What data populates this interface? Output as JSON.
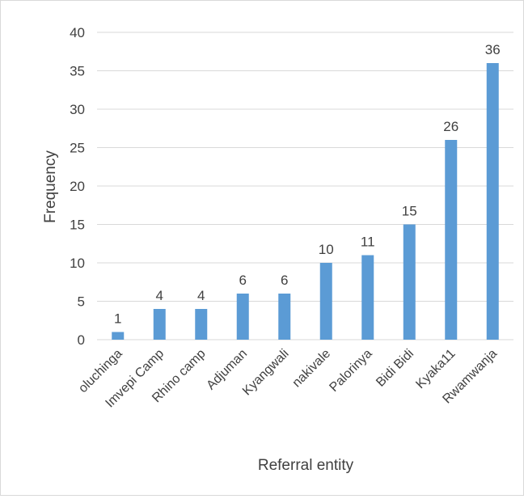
{
  "chart_data": {
    "type": "bar",
    "title": "",
    "xlabel": "Referral entity",
    "ylabel": "Frequency",
    "categories": [
      "oluchinga",
      "Imvepi Camp",
      "Rhino camp",
      "Adjuman",
      "Kyangwali",
      "nakivale",
      "Palorinya",
      "Bidi Bidi",
      "Kyaka11",
      "Rwamwanja"
    ],
    "values": [
      1,
      4,
      4,
      6,
      6,
      10,
      11,
      15,
      26,
      36
    ],
    "ylim": [
      0,
      40
    ],
    "yticks": [
      0,
      5,
      10,
      15,
      20,
      25,
      30,
      35,
      40
    ],
    "grid": true,
    "legend": "none",
    "data_labels": true,
    "colors": {
      "bar": "#5b9bd5",
      "grid": "#d9d9d9",
      "text": "#404040"
    }
  }
}
